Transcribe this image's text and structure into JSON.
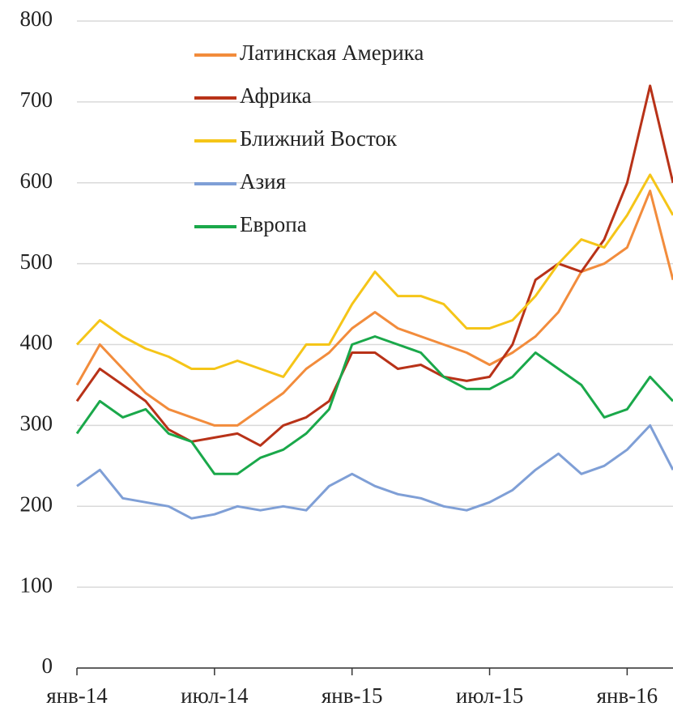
{
  "chart_data": {
    "type": "line",
    "x": [
      "2014-01",
      "2014-02",
      "2014-03",
      "2014-04",
      "2014-05",
      "2014-06",
      "2014-07",
      "2014-08",
      "2014-09",
      "2014-10",
      "2014-11",
      "2014-12",
      "2015-01",
      "2015-02",
      "2015-03",
      "2015-04",
      "2015-05",
      "2015-06",
      "2015-07",
      "2015-08",
      "2015-09",
      "2015-10",
      "2015-11",
      "2015-12",
      "2016-01",
      "2016-02",
      "2016-03"
    ],
    "series": [
      {
        "name": "Латинская Америка",
        "color": "#f28c3c",
        "values": [
          350,
          400,
          370,
          340,
          320,
          310,
          300,
          300,
          320,
          340,
          370,
          390,
          420,
          440,
          420,
          410,
          400,
          390,
          375,
          390,
          410,
          440,
          490,
          500,
          520,
          590,
          480
        ]
      },
      {
        "name": "Африка",
        "color": "#b83218",
        "values": [
          330,
          370,
          350,
          330,
          295,
          280,
          285,
          290,
          275,
          300,
          310,
          330,
          390,
          390,
          370,
          375,
          360,
          355,
          360,
          400,
          480,
          500,
          490,
          530,
          600,
          720,
          600
        ]
      },
      {
        "name": "Ближний Восток",
        "color": "#f5c518",
        "values": [
          400,
          430,
          410,
          395,
          385,
          370,
          370,
          380,
          370,
          360,
          400,
          400,
          450,
          490,
          460,
          460,
          450,
          420,
          420,
          430,
          460,
          500,
          530,
          520,
          560,
          610,
          560
        ]
      },
      {
        "name": "Азия",
        "color": "#7f9fd6",
        "values": [
          225,
          245,
          210,
          205,
          200,
          185,
          190,
          200,
          195,
          200,
          195,
          225,
          240,
          225,
          215,
          210,
          200,
          195,
          205,
          220,
          245,
          265,
          240,
          250,
          270,
          300,
          245
        ]
      },
      {
        "name": "Европа",
        "color": "#1aa84a",
        "values": [
          290,
          330,
          310,
          320,
          290,
          280,
          240,
          240,
          260,
          270,
          290,
          320,
          400,
          410,
          400,
          390,
          360,
          345,
          345,
          360,
          390,
          370,
          350,
          310,
          320,
          360,
          330
        ]
      }
    ],
    "xlim": [
      "2014-01",
      "2016-03"
    ],
    "xticks": [
      {
        "value": "2014-01",
        "label": "янв-14"
      },
      {
        "value": "2014-07",
        "label": "июл-14"
      },
      {
        "value": "2015-01",
        "label": "янв-15"
      },
      {
        "value": "2015-07",
        "label": "июл-15"
      },
      {
        "value": "2016-01",
        "label": "янв-16"
      }
    ],
    "ylim": [
      0,
      800
    ],
    "yticks": [
      0,
      100,
      200,
      300,
      400,
      500,
      600,
      700,
      800
    ],
    "grid": true
  }
}
